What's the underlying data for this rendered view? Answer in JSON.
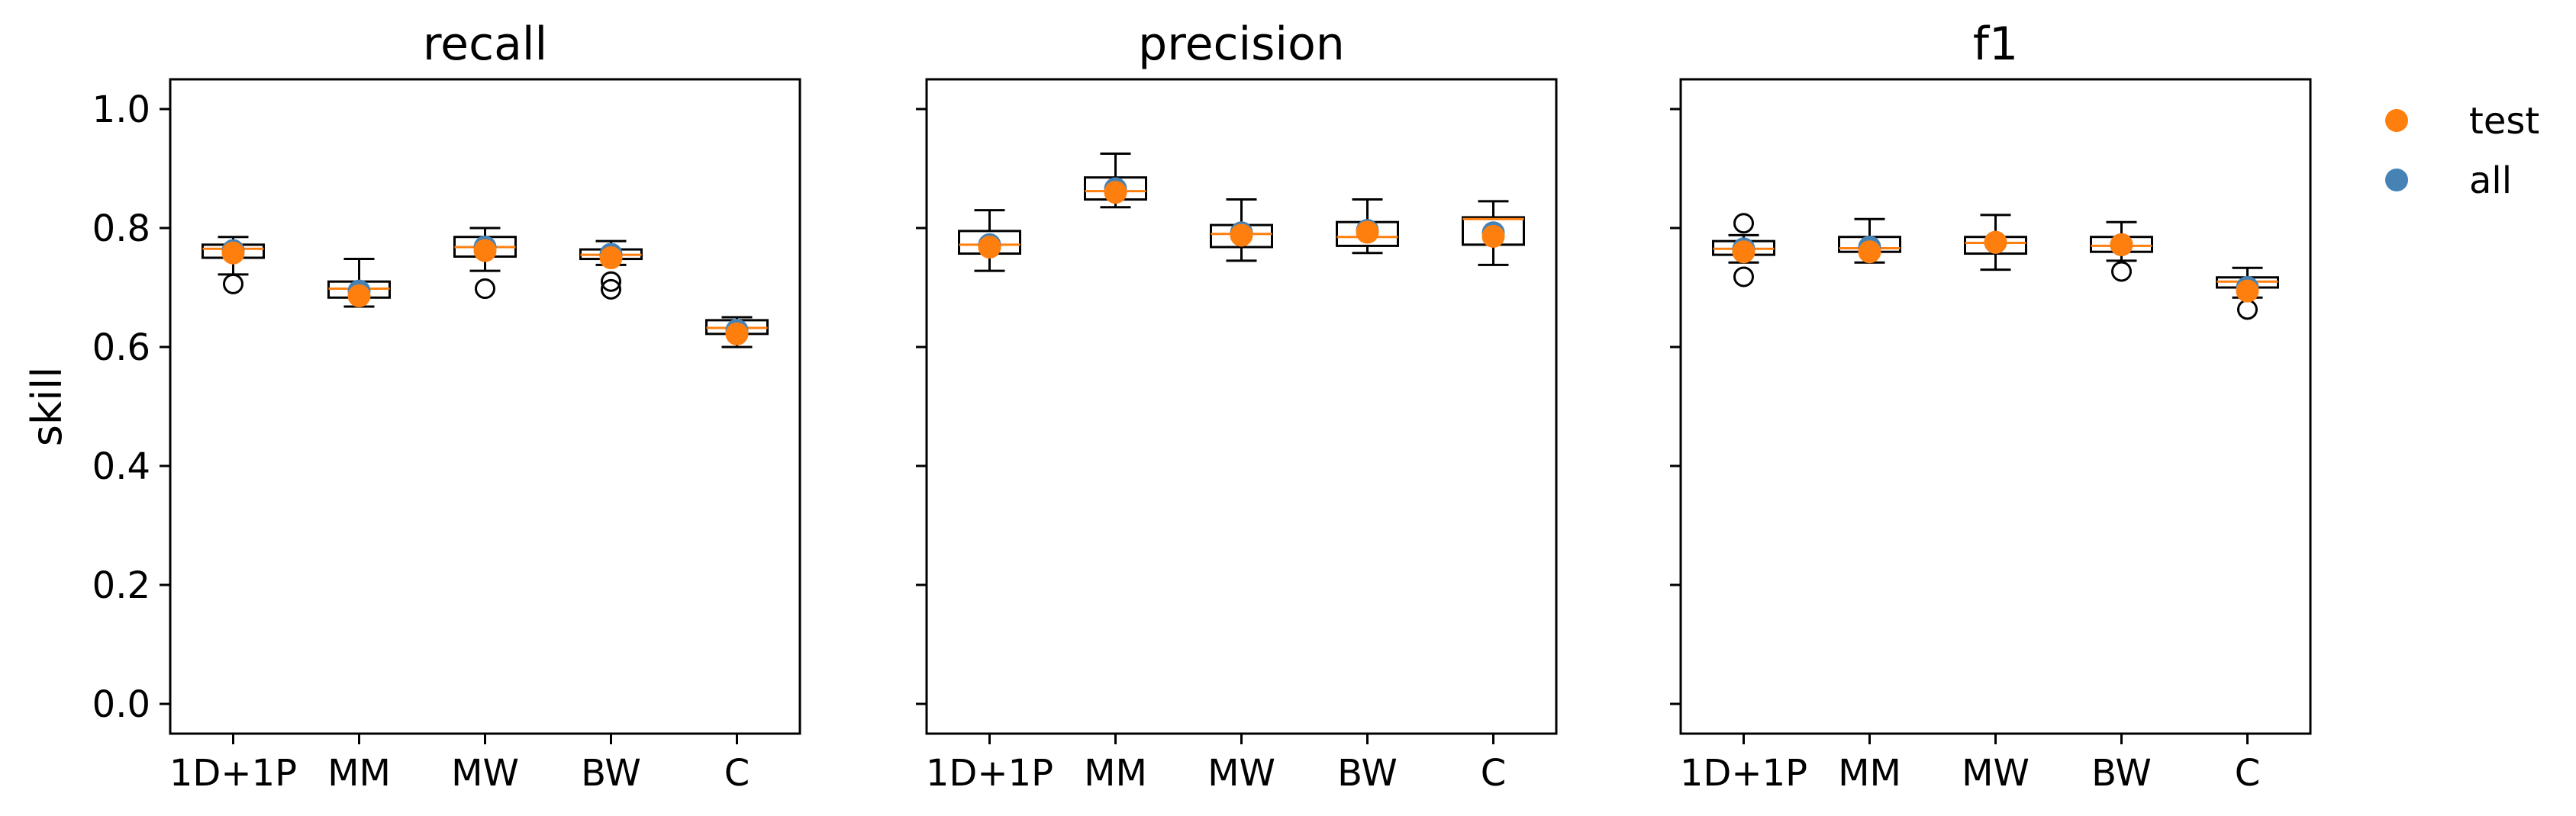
{
  "chart_data": {
    "type": "box",
    "ylabel": "skill",
    "ylim": [
      -0.05,
      1.05
    ],
    "yticks": [
      0.0,
      0.2,
      0.4,
      0.6,
      0.8,
      1.0
    ],
    "ytick_labels": [
      "0.0",
      "0.2",
      "0.4",
      "0.6",
      "0.8",
      "1.0"
    ],
    "categories": [
      "1D+1P",
      "MM",
      "MW",
      "BW",
      "C"
    ],
    "legend": {
      "position": "outside-right-top",
      "entries": [
        {
          "label": "test",
          "color": "#ff7f0e"
        },
        {
          "label": "all",
          "color": "#4682b4"
        }
      ]
    },
    "colors": {
      "median": "#ff7f0e",
      "test": "#ff7f0e",
      "all": "#4682b4",
      "box": "#000000"
    },
    "panels": [
      {
        "title": "recall",
        "boxes": [
          {
            "q1": 0.75,
            "median": 0.765,
            "q3": 0.772,
            "whislo": 0.722,
            "whishi": 0.785,
            "fliers": [
              0.706
            ],
            "test": 0.758,
            "all": 0.762
          },
          {
            "q1": 0.683,
            "median": 0.698,
            "q3": 0.71,
            "whislo": 0.668,
            "whishi": 0.748,
            "fliers": [],
            "test": 0.686,
            "all": 0.694
          },
          {
            "q1": 0.752,
            "median": 0.768,
            "q3": 0.785,
            "whislo": 0.728,
            "whishi": 0.8,
            "fliers": [
              0.698
            ],
            "test": 0.762,
            "all": 0.768
          },
          {
            "q1": 0.748,
            "median": 0.755,
            "q3": 0.764,
            "whislo": 0.738,
            "whishi": 0.778,
            "fliers": [
              0.71,
              0.697
            ],
            "test": 0.75,
            "all": 0.756
          },
          {
            "q1": 0.622,
            "median": 0.632,
            "q3": 0.645,
            "whislo": 0.6,
            "whishi": 0.65,
            "fliers": [],
            "test": 0.622,
            "all": 0.628
          }
        ]
      },
      {
        "title": "precision",
        "boxes": [
          {
            "q1": 0.757,
            "median": 0.772,
            "q3": 0.795,
            "whislo": 0.728,
            "whishi": 0.83,
            "fliers": [],
            "test": 0.768,
            "all": 0.772
          },
          {
            "q1": 0.848,
            "median": 0.862,
            "q3": 0.885,
            "whislo": 0.835,
            "whishi": 0.925,
            "fliers": [],
            "test": 0.86,
            "all": 0.866
          },
          {
            "q1": 0.768,
            "median": 0.79,
            "q3": 0.805,
            "whislo": 0.745,
            "whishi": 0.848,
            "fliers": [],
            "test": 0.788,
            "all": 0.792
          },
          {
            "q1": 0.77,
            "median": 0.785,
            "q3": 0.81,
            "whislo": 0.758,
            "whishi": 0.848,
            "fliers": [],
            "test": 0.793,
            "all": 0.796
          },
          {
            "q1": 0.772,
            "median": 0.815,
            "q3": 0.818,
            "whislo": 0.738,
            "whishi": 0.845,
            "fliers": [],
            "test": 0.786,
            "all": 0.792
          }
        ]
      },
      {
        "title": "f1",
        "boxes": [
          {
            "q1": 0.755,
            "median": 0.765,
            "q3": 0.778,
            "whislo": 0.742,
            "whishi": 0.788,
            "fliers": [
              0.808,
              0.718
            ],
            "test": 0.76,
            "all": 0.765
          },
          {
            "q1": 0.76,
            "median": 0.766,
            "q3": 0.785,
            "whislo": 0.742,
            "whishi": 0.815,
            "fliers": [],
            "test": 0.76,
            "all": 0.768
          },
          {
            "q1": 0.757,
            "median": 0.775,
            "q3": 0.785,
            "whislo": 0.73,
            "whishi": 0.822,
            "fliers": [],
            "test": 0.776,
            "all": 0.776
          },
          {
            "q1": 0.76,
            "median": 0.77,
            "q3": 0.785,
            "whislo": 0.745,
            "whishi": 0.81,
            "fliers": [
              0.727
            ],
            "test": 0.772,
            "all": 0.772
          },
          {
            "q1": 0.7,
            "median": 0.71,
            "q3": 0.717,
            "whislo": 0.683,
            "whishi": 0.733,
            "fliers": [
              0.663
            ],
            "test": 0.694,
            "all": 0.7
          }
        ]
      }
    ]
  }
}
